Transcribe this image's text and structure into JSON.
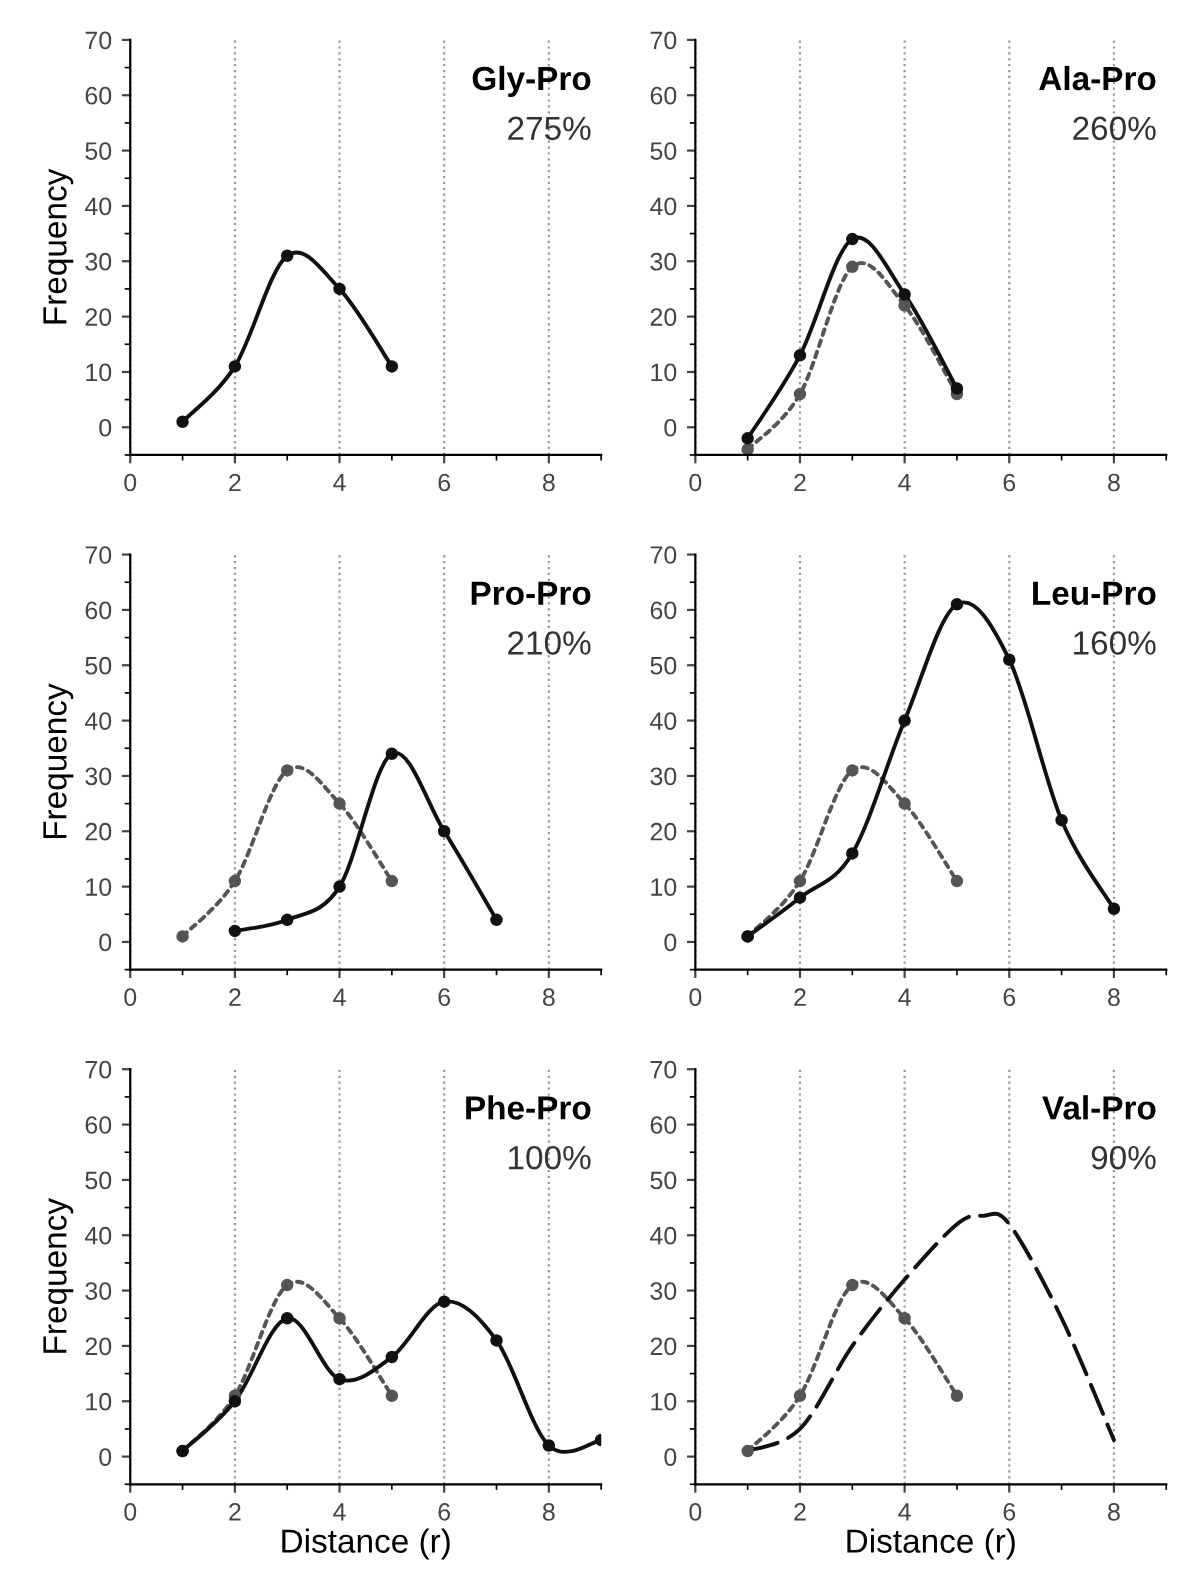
{
  "chart_data": [
    {
      "type": "line",
      "title": "Gly-Pro",
      "annotations": [
        "275%"
      ],
      "ylabel": "Frequency",
      "xlim": [
        0,
        9
      ],
      "ylim": [
        -5,
        70
      ],
      "xticks": [
        0,
        2,
        4,
        6,
        8
      ],
      "yticks": [
        0,
        10,
        20,
        30,
        40,
        50,
        60,
        70
      ],
      "grid": "x",
      "legend": false,
      "series": [
        {
          "color": "#111111",
          "line_style": "solid",
          "marker": "circle",
          "x": [
            1,
            2,
            3,
            4,
            5
          ],
          "values": [
            1,
            11,
            31,
            25,
            11
          ]
        }
      ]
    },
    {
      "type": "line",
      "title": "Ala-Pro",
      "annotations": [
        "260%"
      ],
      "xlim": [
        0,
        9
      ],
      "ylim": [
        -5,
        70
      ],
      "xticks": [
        0,
        2,
        4,
        6,
        8
      ],
      "yticks": [
        0,
        10,
        20,
        30,
        40,
        50,
        60,
        70
      ],
      "grid": "x",
      "legend": false,
      "series": [
        {
          "color": "#555555",
          "line_style": "dotted",
          "marker": "circle",
          "x": [
            1,
            2,
            3,
            4,
            5
          ],
          "values": [
            -4,
            6,
            29,
            22,
            6
          ]
        },
        {
          "color": "#111111",
          "line_style": "solid",
          "marker": "circle",
          "x": [
            1,
            2,
            3,
            4,
            5
          ],
          "values": [
            -2,
            13,
            34,
            24,
            7
          ]
        }
      ]
    },
    {
      "type": "line",
      "title": "Pro-Pro",
      "annotations": [
        "210%"
      ],
      "ylabel": "Frequency",
      "xlim": [
        0,
        9
      ],
      "ylim": [
        -5,
        70
      ],
      "xticks": [
        0,
        2,
        4,
        6,
        8
      ],
      "yticks": [
        0,
        10,
        20,
        30,
        40,
        50,
        60,
        70
      ],
      "grid": "x",
      "legend": false,
      "series": [
        {
          "color": "#555555",
          "line_style": "dotted",
          "marker": "circle",
          "x": [
            1,
            2,
            3,
            4,
            5
          ],
          "values": [
            1,
            11,
            31,
            25,
            11
          ]
        },
        {
          "color": "#111111",
          "line_style": "solid",
          "marker": "circle",
          "x": [
            2,
            3,
            4,
            5,
            6,
            7
          ],
          "values": [
            2,
            4,
            10,
            34,
            20,
            4
          ]
        }
      ]
    },
    {
      "type": "line",
      "title": "Leu-Pro",
      "annotations": [
        "160%"
      ],
      "xlim": [
        0,
        9
      ],
      "ylim": [
        -5,
        70
      ],
      "xticks": [
        0,
        2,
        4,
        6,
        8
      ],
      "yticks": [
        0,
        10,
        20,
        30,
        40,
        50,
        60,
        70
      ],
      "grid": "x",
      "legend": false,
      "series": [
        {
          "color": "#555555",
          "line_style": "dotted",
          "marker": "circle",
          "x": [
            1,
            2,
            3,
            4,
            5
          ],
          "values": [
            1,
            11,
            31,
            25,
            11
          ]
        },
        {
          "color": "#111111",
          "line_style": "solid",
          "marker": "circle",
          "x": [
            1,
            2,
            3,
            4,
            5,
            6,
            7,
            8
          ],
          "values": [
            1,
            8,
            16,
            40,
            61,
            51,
            22,
            6
          ]
        }
      ]
    },
    {
      "type": "line",
      "title": "Phe-Pro",
      "annotations": [
        "100%"
      ],
      "ylabel": "Frequency",
      "xlabel": "Distance (r)",
      "xlim": [
        0,
        9
      ],
      "ylim": [
        -5,
        70
      ],
      "xticks": [
        0,
        2,
        4,
        6,
        8
      ],
      "yticks": [
        0,
        10,
        20,
        30,
        40,
        50,
        60,
        70
      ],
      "grid": "x",
      "legend": false,
      "series": [
        {
          "color": "#555555",
          "line_style": "dotted",
          "marker": "circle",
          "x": [
            1,
            2,
            3,
            4,
            5
          ],
          "values": [
            1,
            11,
            31,
            25,
            11
          ]
        },
        {
          "color": "#111111",
          "line_style": "solid",
          "marker": "circle",
          "x": [
            1,
            2,
            3,
            4,
            5,
            6,
            7,
            8,
            9
          ],
          "values": [
            1,
            10,
            25,
            14,
            18,
            28,
            21,
            2,
            3
          ]
        }
      ]
    },
    {
      "type": "line",
      "title": "Val-Pro",
      "annotations": [
        "90%"
      ],
      "xlabel": "Distance (r)",
      "xlim": [
        0,
        9
      ],
      "ylim": [
        -5,
        70
      ],
      "xticks": [
        0,
        2,
        4,
        6,
        8
      ],
      "yticks": [
        0,
        10,
        20,
        30,
        40,
        50,
        60,
        70
      ],
      "grid": "x",
      "legend": false,
      "series": [
        {
          "color": "#555555",
          "line_style": "dotted",
          "marker": "circle",
          "x": [
            1,
            2,
            3,
            4,
            5
          ],
          "values": [
            1,
            11,
            31,
            25,
            11
          ]
        },
        {
          "color": "#111111",
          "line_style": "dashed",
          "marker": "none",
          "x": [
            1,
            2,
            3,
            4,
            5,
            5.5,
            6,
            7,
            8
          ],
          "values": [
            1,
            5,
            20,
            32,
            42,
            43.5,
            42,
            25,
            3
          ]
        }
      ]
    }
  ]
}
